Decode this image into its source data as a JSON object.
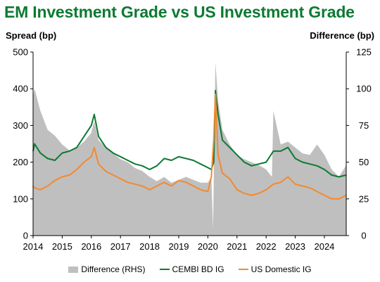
{
  "title": "EM Investment Grade vs US Investment Grade",
  "chart_data": {
    "type": "line",
    "left_axis": {
      "label": "Spread (bp)",
      "range": [
        0,
        500
      ],
      "ticks": [
        "0",
        "100",
        "200",
        "300",
        "400",
        "500"
      ]
    },
    "right_axis": {
      "label": "Difference (bp)",
      "range": [
        0,
        125
      ],
      "ticks": [
        "0",
        "25",
        "50",
        "75",
        "100",
        "125"
      ]
    },
    "x_axis": {
      "range": [
        2014.0,
        2024.75
      ],
      "ticks": [
        "2014",
        "2015",
        "2016",
        "2017",
        "2018",
        "2019",
        "2020",
        "2021",
        "2022",
        "2023",
        "2024"
      ]
    },
    "grid": false,
    "legend_position": "bottom",
    "series": [
      {
        "name": "Difference (RHS)",
        "kind": "area",
        "axis": "right",
        "color": "#bfbfbf",
        "x": [
          2014.0,
          2014.05,
          2014.25,
          2014.5,
          2014.75,
          2015.0,
          2015.25,
          2015.5,
          2015.75,
          2016.0,
          2016.1,
          2016.25,
          2016.5,
          2016.75,
          2017.0,
          2017.25,
          2017.5,
          2017.75,
          2018.0,
          2018.25,
          2018.5,
          2018.75,
          2019.0,
          2019.25,
          2019.5,
          2019.75,
          2020.0,
          2020.12,
          2020.18,
          2020.22,
          2020.26,
          2020.35,
          2020.5,
          2020.75,
          2021.0,
          2021.25,
          2021.5,
          2021.75,
          2022.0,
          2022.2,
          2022.25,
          2022.5,
          2022.75,
          2023.0,
          2023.25,
          2023.5,
          2023.75,
          2024.0,
          2024.25,
          2024.5,
          2024.75
        ],
        "values": [
          95,
          100,
          85,
          72,
          68,
          62,
          58,
          60,
          64,
          70,
          78,
          65,
          60,
          56,
          52,
          50,
          46,
          44,
          40,
          37,
          40,
          36,
          38,
          40,
          38,
          36,
          36,
          40,
          5,
          65,
          118,
          92,
          72,
          62,
          55,
          52,
          50,
          48,
          45,
          40,
          85,
          62,
          64,
          60,
          56,
          55,
          62,
          55,
          45,
          40,
          48
        ]
      },
      {
        "name": "CEMBI BD IG",
        "kind": "line",
        "axis": "left",
        "color": "#0d7a33",
        "x": [
          2014.0,
          2014.05,
          2014.25,
          2014.5,
          2014.75,
          2015.0,
          2015.25,
          2015.5,
          2015.75,
          2016.0,
          2016.1,
          2016.25,
          2016.5,
          2016.75,
          2017.0,
          2017.25,
          2017.5,
          2017.75,
          2018.0,
          2018.25,
          2018.5,
          2018.75,
          2019.0,
          2019.25,
          2019.5,
          2019.75,
          2020.0,
          2020.12,
          2020.2,
          2020.26,
          2020.35,
          2020.5,
          2020.75,
          2021.0,
          2021.25,
          2021.5,
          2021.75,
          2022.0,
          2022.25,
          2022.5,
          2022.75,
          2023.0,
          2023.25,
          2023.5,
          2023.75,
          2024.0,
          2024.25,
          2024.5,
          2024.75
        ],
        "values": [
          230,
          250,
          225,
          210,
          205,
          225,
          230,
          240,
          270,
          300,
          330,
          270,
          240,
          225,
          215,
          205,
          195,
          190,
          180,
          190,
          210,
          205,
          215,
          210,
          205,
          195,
          185,
          180,
          200,
          395,
          330,
          260,
          240,
          220,
          200,
          190,
          195,
          200,
          230,
          230,
          240,
          210,
          200,
          195,
          190,
          180,
          165,
          160,
          165
        ]
      },
      {
        "name": "US Domestic IG",
        "kind": "line",
        "axis": "left",
        "color": "#f28a30",
        "x": [
          2014.0,
          2014.05,
          2014.25,
          2014.5,
          2014.75,
          2015.0,
          2015.25,
          2015.5,
          2015.75,
          2016.0,
          2016.1,
          2016.25,
          2016.5,
          2016.75,
          2017.0,
          2017.25,
          2017.5,
          2017.75,
          2018.0,
          2018.25,
          2018.5,
          2018.75,
          2019.0,
          2019.25,
          2019.5,
          2019.75,
          2020.0,
          2020.12,
          2020.2,
          2020.26,
          2020.35,
          2020.5,
          2020.75,
          2021.0,
          2021.25,
          2021.5,
          2021.75,
          2022.0,
          2022.25,
          2022.5,
          2022.75,
          2023.0,
          2023.25,
          2023.5,
          2023.75,
          2024.0,
          2024.25,
          2024.5,
          2024.75
        ],
        "values": [
          135,
          130,
          125,
          135,
          150,
          160,
          165,
          180,
          200,
          215,
          240,
          195,
          175,
          165,
          155,
          145,
          140,
          135,
          125,
          135,
          145,
          135,
          150,
          145,
          135,
          125,
          120,
          160,
          260,
          385,
          220,
          170,
          155,
          125,
          115,
          110,
          115,
          125,
          140,
          145,
          160,
          140,
          135,
          130,
          120,
          110,
          100,
          100,
          110
        ]
      }
    ]
  }
}
